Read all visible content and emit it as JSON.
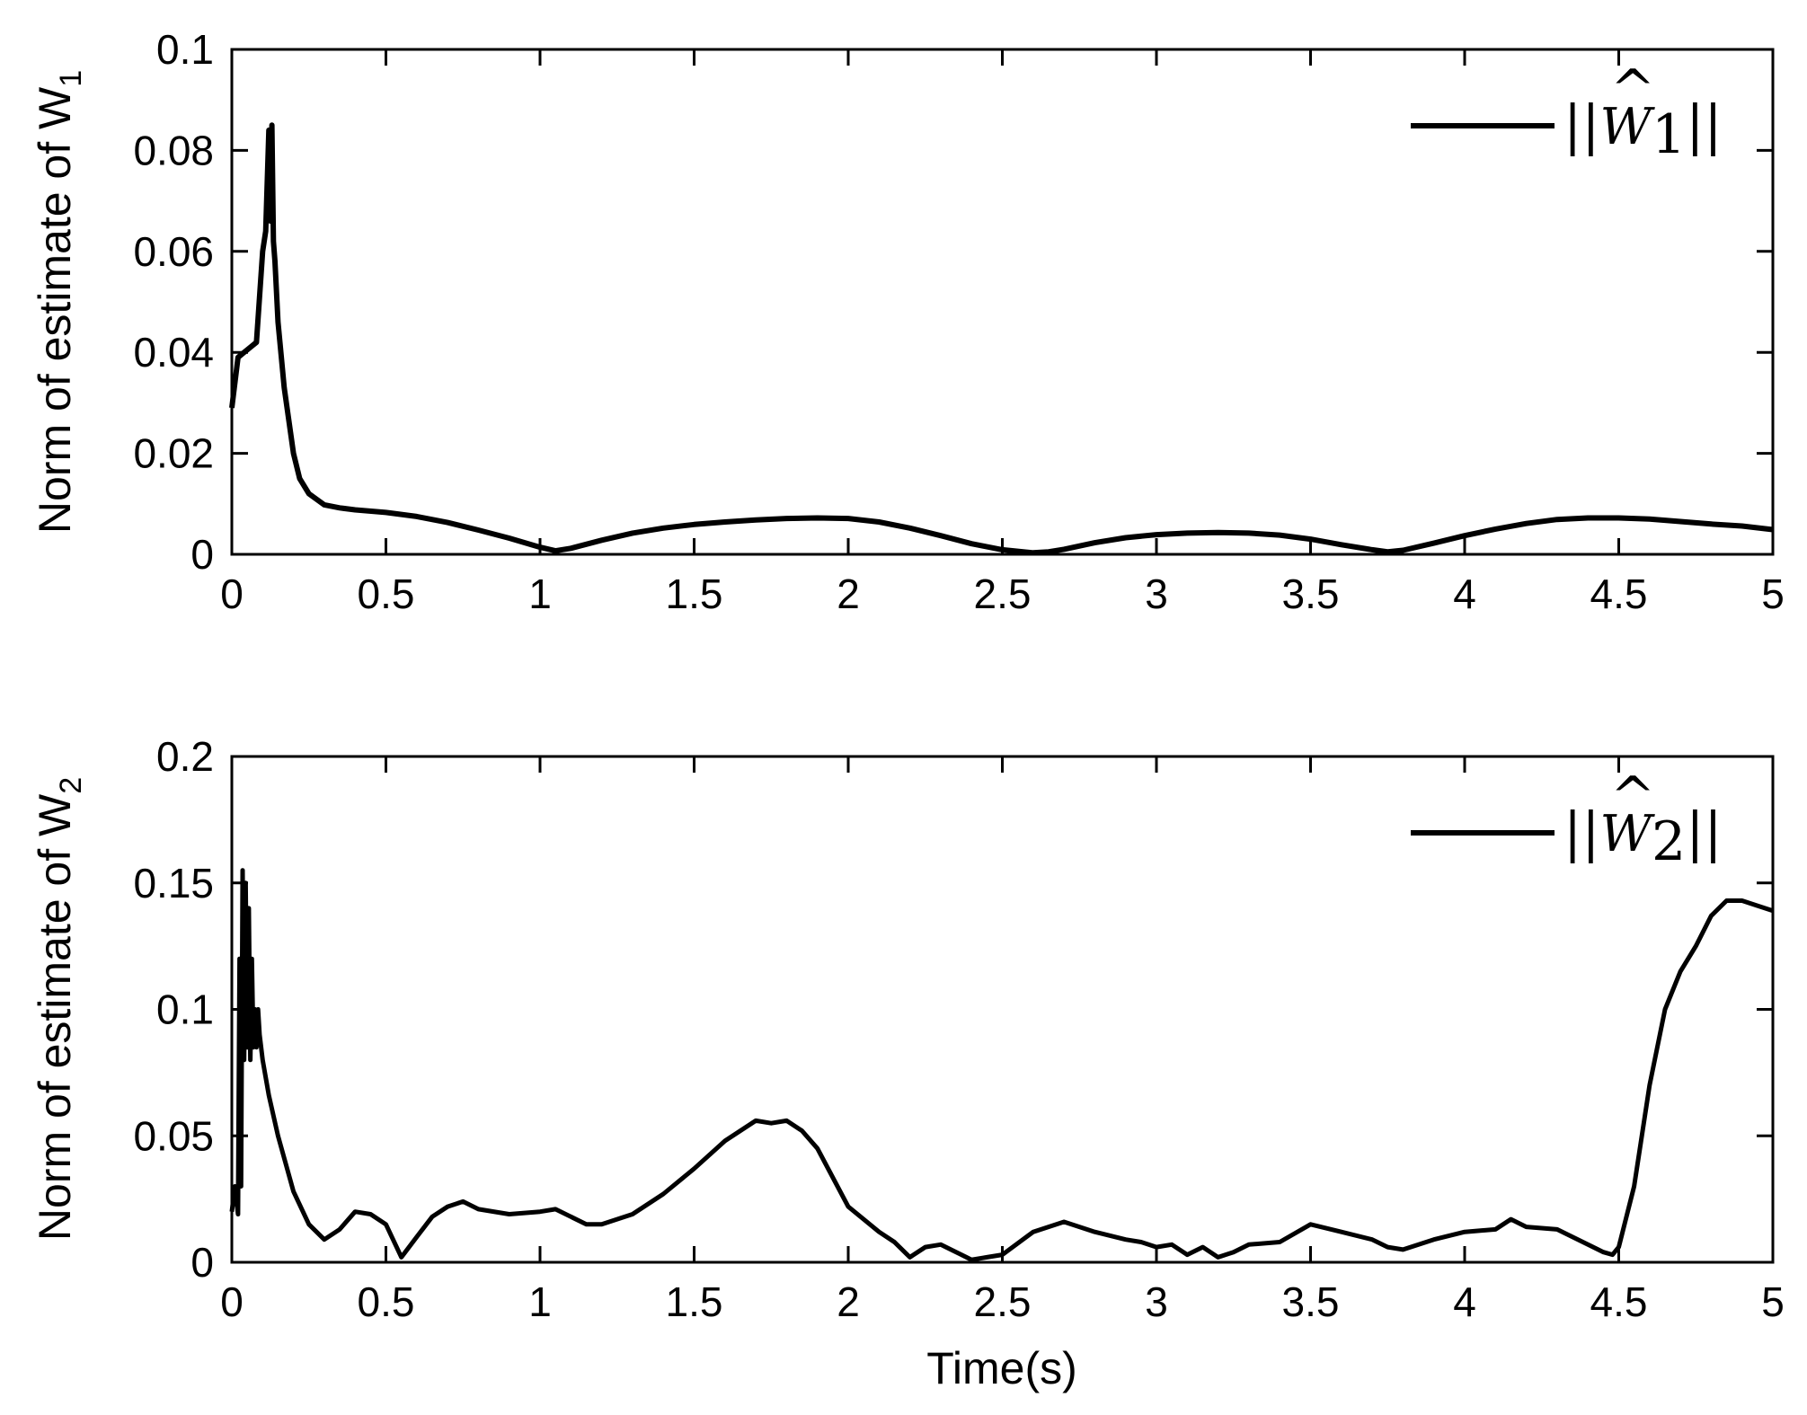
{
  "chart_data": [
    {
      "type": "line",
      "title": "",
      "xlabel": "",
      "ylabel": "Norm of estimate of W",
      "ylabel_sub": "1",
      "xlim": [
        0,
        5
      ],
      "ylim": [
        0,
        0.1
      ],
      "xticks": [
        0,
        0.5,
        1,
        1.5,
        2,
        2.5,
        3,
        3.5,
        4,
        4.5,
        5
      ],
      "xtick_labels": [
        "0",
        "0.5",
        "1",
        "1.5",
        "2",
        "2.5",
        "3",
        "3.5",
        "4",
        "4.5",
        "5"
      ],
      "yticks": [
        0,
        0.02,
        0.04,
        0.06,
        0.08,
        0.1
      ],
      "ytick_labels": [
        "0",
        "0.02",
        "0.04",
        "0.06",
        "0.08",
        "0.1"
      ],
      "grid": false,
      "legend_position": "top-right",
      "series": [
        {
          "name": "||Ŵ1||",
          "legend_symbol": "W",
          "legend_subscript": "1",
          "color": "#000000",
          "x": [
            0,
            0.02,
            0.04,
            0.06,
            0.08,
            0.1,
            0.11,
            0.12,
            0.125,
            0.13,
            0.135,
            0.14,
            0.15,
            0.17,
            0.2,
            0.22,
            0.25,
            0.3,
            0.35,
            0.4,
            0.5,
            0.6,
            0.7,
            0.8,
            0.9,
            1.0,
            1.05,
            1.1,
            1.2,
            1.3,
            1.4,
            1.5,
            1.6,
            1.7,
            1.8,
            1.9,
            2.0,
            2.1,
            2.2,
            2.3,
            2.4,
            2.5,
            2.6,
            2.65,
            2.7,
            2.8,
            2.9,
            3.0,
            3.1,
            3.2,
            3.3,
            3.4,
            3.5,
            3.6,
            3.7,
            3.75,
            3.8,
            3.9,
            4.0,
            4.1,
            4.2,
            4.3,
            4.4,
            4.5,
            4.6,
            4.7,
            4.8,
            4.9,
            5.0
          ],
          "y": [
            0.029,
            0.039,
            0.04,
            0.041,
            0.042,
            0.06,
            0.064,
            0.084,
            0.066,
            0.085,
            0.062,
            0.058,
            0.046,
            0.033,
            0.02,
            0.015,
            0.012,
            0.0098,
            0.0092,
            0.0088,
            0.0083,
            0.0075,
            0.0063,
            0.0048,
            0.0032,
            0.0014,
            0.0007,
            0.0012,
            0.0028,
            0.0042,
            0.0052,
            0.0059,
            0.0064,
            0.0068,
            0.0071,
            0.0072,
            0.0071,
            0.0064,
            0.0052,
            0.0037,
            0.0021,
            0.0009,
            0.0003,
            0.0005,
            0.001,
            0.0023,
            0.0033,
            0.0039,
            0.0042,
            0.0043,
            0.0042,
            0.0038,
            0.003,
            0.0019,
            0.0009,
            0.0005,
            0.0008,
            0.0022,
            0.0037,
            0.005,
            0.0061,
            0.0069,
            0.0072,
            0.0072,
            0.007,
            0.0065,
            0.006,
            0.0056,
            0.0049
          ]
        }
      ]
    },
    {
      "type": "line",
      "title": "",
      "xlabel": "Time(s)",
      "ylabel": "Norm of estimate of W",
      "ylabel_sub": "2",
      "xlim": [
        0,
        5
      ],
      "ylim": [
        0,
        0.2
      ],
      "xticks": [
        0,
        0.5,
        1,
        1.5,
        2,
        2.5,
        3,
        3.5,
        4,
        4.5,
        5
      ],
      "xtick_labels": [
        "0",
        "0.5",
        "1",
        "1.5",
        "2",
        "2.5",
        "3",
        "3.5",
        "4",
        "4.5",
        "5"
      ],
      "yticks": [
        0,
        0.05,
        0.1,
        0.15,
        0.2
      ],
      "ytick_labels": [
        "0",
        "0.05",
        "0.1",
        "0.15",
        "0.2"
      ],
      "grid": false,
      "legend_position": "top-right",
      "series": [
        {
          "name": "||Ŵ2||",
          "legend_symbol": "W",
          "legend_subscript": "2",
          "color": "#000000",
          "x": [
            0,
            0.01,
            0.02,
            0.025,
            0.03,
            0.035,
            0.04,
            0.045,
            0.05,
            0.055,
            0.06,
            0.065,
            0.07,
            0.075,
            0.08,
            0.085,
            0.09,
            0.1,
            0.12,
            0.15,
            0.2,
            0.25,
            0.3,
            0.35,
            0.4,
            0.45,
            0.5,
            0.55,
            0.6,
            0.65,
            0.7,
            0.75,
            0.8,
            0.9,
            1.0,
            1.05,
            1.1,
            1.15,
            1.2,
            1.3,
            1.4,
            1.5,
            1.6,
            1.7,
            1.75,
            1.8,
            1.85,
            1.9,
            2.0,
            2.1,
            2.15,
            2.2,
            2.25,
            2.3,
            2.35,
            2.4,
            2.45,
            2.5,
            2.6,
            2.7,
            2.8,
            2.9,
            2.95,
            3.0,
            3.05,
            3.1,
            3.15,
            3.2,
            3.25,
            3.3,
            3.4,
            3.5,
            3.6,
            3.7,
            3.75,
            3.8,
            3.9,
            4.0,
            4.1,
            4.15,
            4.2,
            4.3,
            4.4,
            4.45,
            4.48,
            4.5,
            4.55,
            4.6,
            4.65,
            4.7,
            4.75,
            4.8,
            4.85,
            4.9,
            4.95,
            5.0
          ],
          "y": [
            0.02,
            0.03,
            0.019,
            0.12,
            0.03,
            0.155,
            0.08,
            0.15,
            0.085,
            0.14,
            0.08,
            0.12,
            0.085,
            0.1,
            0.085,
            0.1,
            0.09,
            0.08,
            0.066,
            0.05,
            0.028,
            0.015,
            0.009,
            0.013,
            0.02,
            0.019,
            0.015,
            0.002,
            0.01,
            0.018,
            0.022,
            0.024,
            0.021,
            0.019,
            0.02,
            0.021,
            0.018,
            0.015,
            0.015,
            0.019,
            0.027,
            0.037,
            0.048,
            0.056,
            0.055,
            0.056,
            0.052,
            0.045,
            0.022,
            0.012,
            0.008,
            0.002,
            0.006,
            0.007,
            0.004,
            0.001,
            0.002,
            0.003,
            0.012,
            0.016,
            0.012,
            0.009,
            0.008,
            0.006,
            0.007,
            0.003,
            0.006,
            0.002,
            0.004,
            0.007,
            0.008,
            0.015,
            0.012,
            0.009,
            0.006,
            0.005,
            0.009,
            0.012,
            0.013,
            0.017,
            0.014,
            0.013,
            0.007,
            0.004,
            0.003,
            0.006,
            0.03,
            0.07,
            0.1,
            0.115,
            0.125,
            0.137,
            0.143,
            0.143,
            0.141,
            0.139
          ]
        }
      ]
    }
  ]
}
